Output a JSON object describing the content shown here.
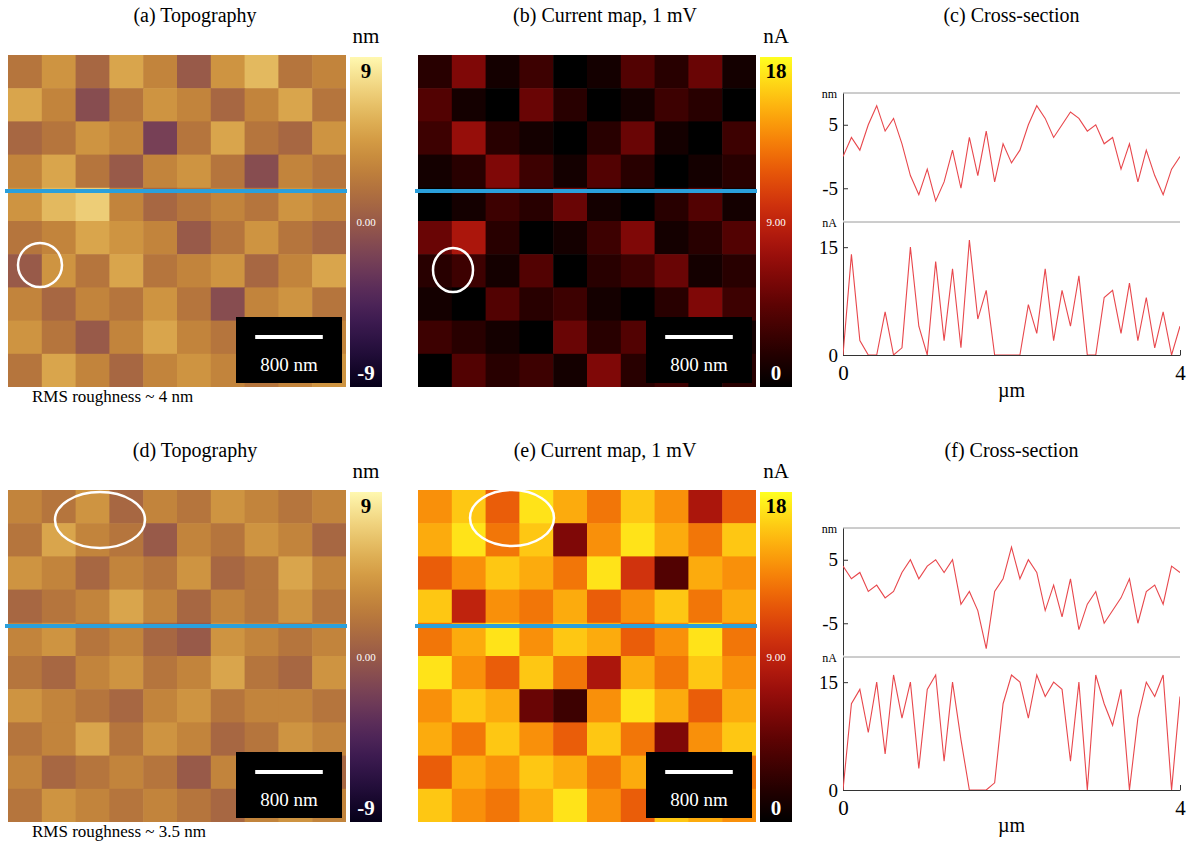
{
  "chart_data": [
    {
      "type": "heatmap",
      "title": "(a) Topography",
      "color": "gold",
      "tick_labels": false,
      "xlim": [
        0,
        4000
      ],
      "ylim": [
        0,
        4000
      ],
      "cells": [
        [
          2,
          4,
          1,
          5,
          3,
          0,
          4,
          6,
          2,
          3
        ],
        [
          5,
          3,
          -1,
          2,
          4,
          3,
          1,
          3,
          5,
          2
        ],
        [
          1,
          2,
          4,
          3,
          -2,
          2,
          5,
          2,
          1,
          4
        ],
        [
          3,
          5,
          2,
          0,
          3,
          4,
          2,
          -1,
          3,
          2
        ],
        [
          4,
          6,
          7,
          3,
          1,
          2,
          3,
          2,
          4,
          3
        ],
        [
          2,
          3,
          5,
          4,
          3,
          0,
          2,
          4,
          2,
          1
        ],
        [
          0,
          4,
          2,
          5,
          2,
          3,
          4,
          1,
          3,
          5
        ],
        [
          3,
          1,
          3,
          2,
          4,
          2,
          -1,
          3,
          4,
          2
        ],
        [
          4,
          2,
          0,
          3,
          5,
          3,
          2,
          4,
          1,
          3
        ],
        [
          2,
          5,
          3,
          1,
          3,
          4,
          3,
          2,
          3,
          4
        ]
      ],
      "colorbar": {
        "title": "nm",
        "range": [
          -9,
          9
        ],
        "ticks": [
          9,
          {
            "value": 0,
            "label": "0.00"
          },
          -9
        ]
      },
      "scale_bar": {
        "value": 800,
        "label": "800 nm"
      },
      "annotations": [
        "RMS roughness ~ 4 nm"
      ]
    },
    {
      "type": "heatmap",
      "title": "(b) Current map, 1 mV",
      "color": "hot",
      "tick_labels": false,
      "xlim": [
        0,
        4000
      ],
      "ylim": [
        0,
        4000
      ],
      "cells": [
        [
          2,
          6,
          1,
          3,
          0,
          1,
          4,
          2,
          5,
          1
        ],
        [
          4,
          1,
          0,
          5,
          2,
          0,
          1,
          3,
          2,
          0
        ],
        [
          3,
          7,
          2,
          1,
          0,
          2,
          5,
          1,
          0,
          3
        ],
        [
          1,
          2,
          6,
          3,
          1,
          4,
          2,
          0,
          1,
          2
        ],
        [
          0,
          1,
          3,
          2,
          5,
          1,
          0,
          2,
          4,
          1
        ],
        [
          5,
          8,
          2,
          0,
          1,
          3,
          6,
          1,
          2,
          4
        ],
        [
          2,
          3,
          1,
          4,
          0,
          2,
          3,
          5,
          1,
          2
        ],
        [
          1,
          0,
          4,
          2,
          3,
          1,
          0,
          2,
          6,
          3
        ],
        [
          3,
          2,
          1,
          0,
          5,
          2,
          4,
          1,
          2,
          1
        ],
        [
          0,
          4,
          2,
          3,
          1,
          6,
          2,
          3,
          0,
          2
        ]
      ],
      "colorbar": {
        "title": "nA",
        "range": [
          0,
          18
        ],
        "ticks": [
          18,
          {
            "value": 9,
            "label": "9.00"
          },
          0
        ]
      },
      "scale_bar": {
        "value": 800,
        "label": "800 nm"
      }
    },
    {
      "type": "line",
      "title": "(c) Cross-section",
      "y_label": "nm",
      "color": "#e8474c",
      "tick_labels": "y",
      "xlim": [
        0,
        4
      ],
      "ylim": [
        -10,
        10
      ],
      "yticks": [
        5,
        -5
      ],
      "x": [
        0,
        0.1,
        0.2,
        0.3,
        0.4,
        0.5,
        0.6,
        0.7,
        0.8,
        0.9,
        1.0,
        1.1,
        1.2,
        1.3,
        1.4,
        1.5,
        1.6,
        1.7,
        1.8,
        1.9,
        2.0,
        2.1,
        2.2,
        2.3,
        2.4,
        2.5,
        2.6,
        2.7,
        2.8,
        2.9,
        3.0,
        3.1,
        3.2,
        3.3,
        3.4,
        3.5,
        3.6,
        3.7,
        3.8,
        3.9,
        4.0
      ],
      "values": [
        0,
        3,
        1,
        5,
        8,
        4,
        6,
        2,
        -3,
        -6,
        -2,
        -7,
        -4,
        1,
        -5,
        3,
        -3,
        4,
        -4,
        2,
        -1,
        1,
        5,
        8,
        6,
        3,
        5,
        7,
        6,
        4,
        5,
        2,
        3,
        -2,
        2,
        -4,
        1,
        -3,
        -6,
        -2,
        0
      ]
    },
    {
      "type": "line",
      "y_label": "nA",
      "x_label": "µm",
      "color": "#e8474c",
      "xlim": [
        0,
        4
      ],
      "ylim": [
        0,
        18.5
      ],
      "xticks": [
        0,
        4
      ],
      "yticks": [
        0,
        15
      ],
      "x": [
        0,
        0.1,
        0.2,
        0.3,
        0.4,
        0.5,
        0.6,
        0.7,
        0.8,
        0.9,
        1.0,
        1.1,
        1.2,
        1.3,
        1.4,
        1.5,
        1.6,
        1.7,
        1.8,
        1.9,
        2.0,
        2.1,
        2.2,
        2.3,
        2.4,
        2.5,
        2.6,
        2.7,
        2.8,
        2.9,
        3.0,
        3.1,
        3.2,
        3.3,
        3.4,
        3.5,
        3.6,
        3.7,
        3.8,
        3.9,
        4.0
      ],
      "values": [
        0,
        14,
        2,
        0,
        0,
        6,
        0,
        1,
        15,
        4,
        0,
        13,
        2,
        12,
        1,
        16,
        5,
        9,
        0,
        0,
        0,
        0,
        7,
        3,
        12,
        2,
        9,
        4,
        11,
        0,
        0,
        8,
        9,
        3,
        10,
        2,
        8,
        1,
        6,
        0,
        4
      ]
    },
    {
      "type": "heatmap",
      "title": "(d) Topography",
      "color": "gold",
      "tick_labels": false,
      "xlim": [
        0,
        4000
      ],
      "ylim": [
        0,
        4000
      ],
      "cells": [
        [
          3,
          2,
          4,
          1,
          3,
          2,
          4,
          3,
          2,
          3
        ],
        [
          2,
          5,
          3,
          2,
          0,
          3,
          2,
          4,
          3,
          1
        ],
        [
          4,
          3,
          1,
          3,
          2,
          4,
          1,
          2,
          5,
          3
        ],
        [
          1,
          2,
          3,
          5,
          3,
          1,
          3,
          2,
          4,
          2
        ],
        [
          3,
          4,
          2,
          3,
          1,
          0,
          4,
          3,
          2,
          3
        ],
        [
          2,
          1,
          3,
          4,
          2,
          3,
          5,
          2,
          1,
          4
        ],
        [
          4,
          3,
          2,
          1,
          3,
          4,
          2,
          3,
          3,
          2
        ],
        [
          2,
          3,
          5,
          2,
          4,
          3,
          1,
          2,
          4,
          3
        ],
        [
          3,
          1,
          2,
          3,
          2,
          0,
          3,
          4,
          2,
          1
        ],
        [
          2,
          4,
          3,
          2,
          3,
          2,
          1,
          3,
          4,
          3
        ]
      ],
      "colorbar": {
        "title": "nm",
        "range": [
          -9,
          9
        ],
        "ticks": [
          9,
          {
            "value": 0,
            "label": "0.00"
          },
          -9
        ]
      },
      "scale_bar": {
        "value": 800,
        "label": "800 nm"
      },
      "annotations": [
        "RMS roughness ~ 3.5 nm"
      ]
    },
    {
      "type": "heatmap",
      "title": "(e) Current map, 1 mV",
      "color": "hot",
      "tick_labels": false,
      "xlim": [
        0,
        4000
      ],
      "ylim": [
        0,
        4000
      ],
      "cells": [
        [
          14,
          16,
          12,
          17,
          15,
          13,
          16,
          14,
          8,
          12
        ],
        [
          15,
          17,
          13,
          16,
          6,
          14,
          17,
          15,
          13,
          16
        ],
        [
          12,
          14,
          16,
          15,
          13,
          17,
          10,
          4,
          15,
          14
        ],
        [
          16,
          9,
          14,
          13,
          15,
          12,
          14,
          16,
          13,
          15
        ],
        [
          13,
          15,
          17,
          14,
          16,
          15,
          12,
          14,
          17,
          13
        ],
        [
          17,
          14,
          12,
          16,
          13,
          8,
          15,
          13,
          16,
          14
        ],
        [
          14,
          16,
          15,
          5,
          3,
          14,
          17,
          15,
          12,
          15
        ],
        [
          15,
          13,
          16,
          14,
          12,
          16,
          13,
          6,
          14,
          16
        ],
        [
          12,
          15,
          14,
          16,
          15,
          13,
          15,
          14,
          17,
          13
        ],
        [
          16,
          14,
          13,
          15,
          17,
          14,
          12,
          16,
          15,
          14
        ]
      ],
      "colorbar": {
        "title": "nA",
        "range": [
          0,
          18
        ],
        "ticks": [
          18,
          {
            "value": 9,
            "label": "9.00"
          },
          0
        ]
      },
      "scale_bar": {
        "value": 800,
        "label": "800 nm"
      }
    },
    {
      "type": "line",
      "title": "(f) Cross-section",
      "y_label": "nm",
      "color": "#e8474c",
      "tick_labels": "y",
      "xlim": [
        0,
        4
      ],
      "ylim": [
        -10,
        10
      ],
      "yticks": [
        5,
        -5
      ],
      "x": [
        0,
        0.1,
        0.2,
        0.3,
        0.4,
        0.5,
        0.6,
        0.7,
        0.8,
        0.9,
        1.0,
        1.1,
        1.2,
        1.3,
        1.4,
        1.5,
        1.6,
        1.7,
        1.8,
        1.9,
        2.0,
        2.1,
        2.2,
        2.3,
        2.4,
        2.5,
        2.6,
        2.7,
        2.8,
        2.9,
        3.0,
        3.1,
        3.2,
        3.3,
        3.4,
        3.5,
        3.6,
        3.7,
        3.8,
        3.9,
        4.0
      ],
      "values": [
        4,
        2,
        3,
        0,
        1,
        -1,
        0,
        3,
        5,
        2,
        4,
        5,
        3,
        5,
        -2,
        0,
        -3,
        -9,
        0,
        2,
        7,
        2,
        5,
        3,
        -3,
        1,
        -4,
        2,
        -6,
        -2,
        0,
        -5,
        -3,
        -1,
        2,
        -5,
        0,
        1,
        -2,
        4,
        3
      ]
    },
    {
      "type": "line",
      "y_label": "nA",
      "x_label": "µm",
      "color": "#e8474c",
      "xlim": [
        0,
        4
      ],
      "ylim": [
        0,
        18.5
      ],
      "xticks": [
        0,
        4
      ],
      "yticks": [
        0,
        15
      ],
      "x": [
        0,
        0.1,
        0.2,
        0.3,
        0.4,
        0.5,
        0.6,
        0.7,
        0.8,
        0.9,
        1.0,
        1.1,
        1.2,
        1.3,
        1.4,
        1.5,
        1.6,
        1.7,
        1.8,
        1.9,
        2.0,
        2.1,
        2.2,
        2.3,
        2.4,
        2.5,
        2.6,
        2.7,
        2.8,
        2.9,
        3.0,
        3.1,
        3.2,
        3.3,
        3.4,
        3.5,
        3.6,
        3.7,
        3.8,
        3.9,
        4.0
      ],
      "values": [
        0,
        12,
        14,
        8,
        15,
        5,
        16,
        10,
        15,
        3,
        14,
        16,
        4,
        15,
        7,
        0,
        0,
        0,
        1,
        12,
        16,
        15,
        10,
        16,
        13,
        15,
        14,
        4,
        15,
        0,
        16,
        12,
        9,
        14,
        0,
        10,
        15,
        13,
        16,
        0,
        13
      ]
    }
  ]
}
